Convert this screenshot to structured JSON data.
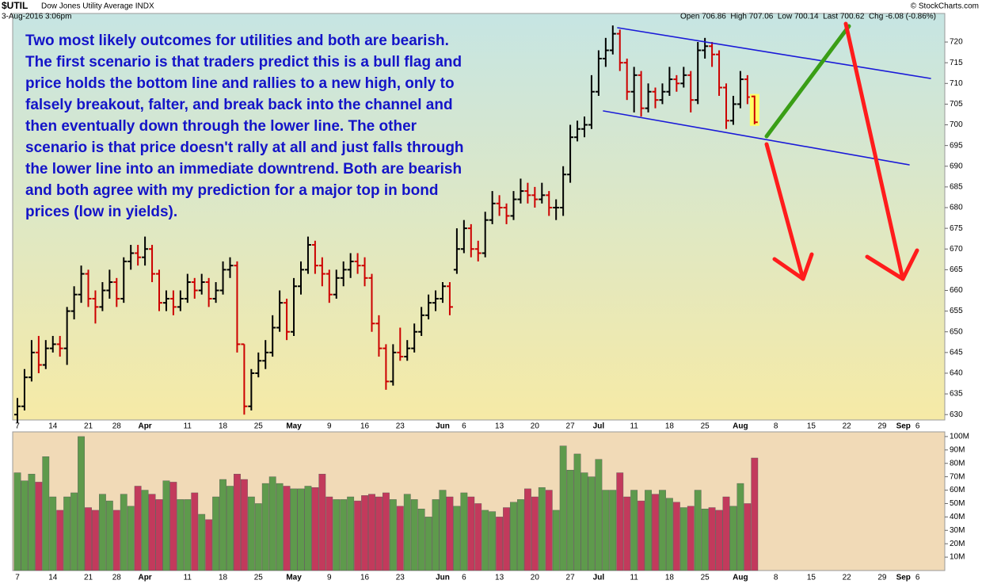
{
  "chart_data": {
    "type": "ohlc",
    "title": "$UTIL",
    "subtitle": "Dow Jones Utility Average INDX",
    "date_text": "3-Aug-2016 3:06pm",
    "quote_text": "Open 706.86  High 707.06  Low 700.14  Last 700.62  Chg -6.08 (-0.86%)",
    "source": "© StockCharts.com",
    "annotation": "Two most likely outcomes for utilities and both are bearish. The first scenario is that traders predict this is a bull flag and price holds the bottom line and rallies to a new high, only to falsely breakout, falter, and break back into the channel and then eventually down through the lower line. The other scenario is that price doesn't rally at all and just falls through the lower line into an immediate downtrend. Both are bearish and both agree with my prediction for a major top in bond prices (low in yields).",
    "categories": [
      "7",
      null,
      null,
      null,
      null,
      "14",
      null,
      null,
      null,
      null,
      "21",
      null,
      null,
      null,
      "28",
      null,
      null,
      null,
      "Apr",
      null,
      null,
      null,
      null,
      null,
      "11",
      null,
      null,
      null,
      null,
      "18",
      null,
      null,
      null,
      null,
      "25",
      null,
      null,
      null,
      null,
      "May",
      null,
      null,
      null,
      null,
      "9",
      null,
      null,
      null,
      null,
      "16",
      null,
      null,
      null,
      null,
      "23",
      null,
      null,
      null,
      null,
      null,
      "Jun",
      null,
      null,
      "6",
      null,
      null,
      null,
      null,
      "13",
      null,
      null,
      null,
      null,
      "20",
      null,
      null,
      null,
      null,
      "27",
      null,
      null,
      null,
      "Jul",
      null,
      null,
      null,
      null,
      "11",
      null,
      null,
      null,
      null,
      "18",
      null,
      null,
      null,
      null,
      "25",
      null,
      null,
      null,
      null,
      "Aug",
      null,
      null,
      null,
      null,
      "8",
      null,
      null,
      null,
      null,
      "15",
      null,
      null,
      null,
      null,
      "22",
      null,
      null,
      null,
      null,
      "29",
      null,
      null,
      "Sep",
      null,
      "6",
      null,
      null,
      null
    ],
    "open": [
      630,
      632,
      639,
      645,
      642,
      646,
      647,
      646,
      655,
      659,
      664,
      658,
      656,
      660,
      662,
      658,
      667,
      669,
      668,
      670,
      664,
      657,
      658,
      656,
      658,
      662,
      660,
      662,
      658,
      660,
      665,
      666,
      647,
      632,
      640,
      643,
      645,
      651,
      657,
      650,
      661,
      665,
      671,
      666,
      664,
      659,
      663,
      665,
      667,
      666,
      663,
      652,
      646,
      638,
      645,
      644,
      646,
      650,
      654,
      657,
      658,
      661,
      665,
      670,
      675,
      670,
      669,
      677,
      681,
      680,
      678,
      682,
      684,
      683,
      682,
      683,
      680,
      680,
      688,
      697,
      699,
      700,
      708,
      716,
      718,
      722,
      715,
      708,
      712,
      704,
      708,
      706,
      708,
      711,
      710,
      712,
      706,
      718,
      719,
      717,
      709,
      701,
      705,
      711,
      706.86,
      null,
      null,
      null,
      null,
      null,
      null,
      null,
      null,
      null,
      null,
      null,
      null,
      null,
      null,
      null,
      null,
      null,
      null,
      null,
      null,
      null,
      null,
      null,
      null,
      null,
      null
    ],
    "high": [
      634,
      641,
      648,
      649,
      648,
      649,
      649,
      656,
      661,
      666,
      665,
      660,
      662,
      665,
      663,
      668,
      671,
      671,
      673,
      671,
      665,
      660,
      660,
      660,
      664,
      663,
      664,
      663,
      662,
      667,
      668,
      667,
      647,
      641,
      645,
      648,
      654,
      660,
      658,
      663,
      667,
      673,
      672,
      668,
      665,
      665,
      667,
      669,
      669,
      668,
      664,
      654,
      647,
      647,
      651,
      648,
      652,
      656,
      659,
      660,
      662,
      662,
      675,
      677,
      676,
      672,
      679,
      684,
      683,
      681,
      684,
      687,
      686,
      685,
      686,
      684,
      682,
      690,
      700,
      701,
      702,
      712,
      718,
      721,
      724,
      723,
      716,
      714,
      713,
      710,
      709,
      710,
      714,
      712,
      714,
      713,
      720,
      721,
      720,
      718,
      710,
      707,
      713,
      712,
      707.06,
      null,
      null,
      null,
      null,
      null,
      null,
      null,
      null,
      null,
      null,
      null,
      null,
      null,
      null,
      null,
      null,
      null,
      null,
      null,
      null,
      null,
      null,
      null,
      null,
      null,
      null
    ],
    "low": [
      628,
      631,
      638,
      640,
      641,
      645,
      644,
      642,
      653,
      657,
      656,
      652,
      655,
      658,
      656,
      657,
      665,
      666,
      666,
      662,
      655,
      655,
      654,
      655,
      657,
      658,
      659,
      656,
      657,
      659,
      663,
      645,
      630,
      631,
      639,
      641,
      644,
      650,
      648,
      649,
      659,
      664,
      664,
      661,
      657,
      658,
      661,
      663,
      664,
      661,
      650,
      644,
      636,
      637,
      643,
      643,
      645,
      649,
      653,
      655,
      657,
      654,
      664,
      669,
      668,
      667,
      668,
      676,
      678,
      676,
      677,
      681,
      681,
      680,
      681,
      678,
      677,
      678,
      686,
      696,
      697,
      699,
      707,
      714,
      717,
      713,
      706,
      703,
      702,
      703,
      704,
      705,
      707,
      708,
      709,
      703,
      705,
      716,
      714,
      707,
      699,
      700,
      704,
      705,
      700.14,
      null,
      null,
      null,
      null,
      null,
      null,
      null,
      null,
      null,
      null,
      null,
      null,
      null,
      null,
      null,
      null,
      null,
      null,
      null,
      null,
      null,
      null,
      null,
      null,
      null,
      null
    ],
    "close": [
      632,
      639,
      645,
      642,
      646,
      647,
      646,
      655,
      659,
      664,
      658,
      656,
      660,
      662,
      658,
      667,
      669,
      668,
      670,
      664,
      657,
      658,
      656,
      658,
      662,
      660,
      662,
      658,
      660,
      665,
      666,
      647,
      632,
      640,
      643,
      645,
      651,
      657,
      650,
      661,
      665,
      671,
      666,
      664,
      659,
      663,
      665,
      667,
      666,
      663,
      652,
      646,
      638,
      645,
      644,
      646,
      650,
      654,
      657,
      658,
      661,
      656,
      670,
      675,
      670,
      669,
      677,
      681,
      680,
      678,
      682,
      684,
      683,
      682,
      683,
      680,
      680,
      688,
      697,
      699,
      700,
      708,
      716,
      718,
      722,
      715,
      708,
      712,
      704,
      708,
      706,
      708,
      711,
      710,
      712,
      706,
      718,
      719,
      717,
      709,
      701,
      705,
      711,
      706.7,
      700.62,
      null,
      null,
      null,
      null,
      null,
      null,
      null,
      null,
      null,
      null,
      null,
      null,
      null,
      null,
      null,
      null,
      null,
      null,
      null,
      null,
      null,
      null,
      null,
      null,
      null,
      null
    ],
    "volume": [
      73,
      67,
      72,
      66,
      85,
      55,
      45,
      55,
      58,
      100,
      47,
      45,
      57,
      52,
      45,
      57,
      48,
      63,
      60,
      57,
      53,
      67,
      66,
      53,
      53,
      58,
      42,
      38,
      55,
      68,
      63,
      72,
      68,
      55,
      50,
      65,
      70,
      65,
      63,
      61,
      61,
      63,
      62,
      72,
      55,
      53,
      53,
      55,
      52,
      56,
      57,
      55,
      58,
      53,
      48,
      57,
      53,
      46,
      40,
      53,
      60,
      55,
      48,
      58,
      55,
      50,
      45,
      44,
      40,
      47,
      51,
      53,
      61,
      55,
      62,
      60,
      45,
      93,
      75,
      87,
      73,
      70,
      83,
      60,
      60,
      73,
      55,
      60,
      52,
      60,
      57,
      60,
      54,
      51,
      47,
      48,
      60,
      46,
      47,
      45,
      55,
      48,
      65,
      50,
      84,
      null,
      null,
      null,
      null,
      null,
      null,
      null,
      null,
      null,
      null,
      null,
      null,
      null,
      null,
      null,
      null,
      null,
      null,
      null,
      null,
      null,
      null,
      null,
      null,
      null,
      null
    ],
    "up_color": "#000000",
    "down_color": "#cc0000",
    "volume_up_color": "#5e9a4c",
    "volume_down_color": "#c23a5c",
    "ylim": [
      628.7,
      726.9
    ],
    "yticks": [
      630,
      635,
      640,
      645,
      650,
      655,
      660,
      665,
      670,
      675,
      680,
      685,
      690,
      695,
      700,
      705,
      710,
      715,
      720
    ],
    "volume_ylim": [
      0,
      103.5
    ],
    "volume_yticks": [
      {
        "value": 10,
        "label": "10M"
      },
      {
        "value": 20,
        "label": "20M"
      },
      {
        "value": 30,
        "label": "30M"
      },
      {
        "value": 40,
        "label": "40M"
      },
      {
        "value": 50,
        "label": "50M"
      },
      {
        "value": 60,
        "label": "60M"
      },
      {
        "value": 70,
        "label": "70M"
      },
      {
        "value": 80,
        "label": "80M"
      },
      {
        "value": 90,
        "label": "90M"
      },
      {
        "value": 100,
        "label": "100M"
      }
    ]
  }
}
